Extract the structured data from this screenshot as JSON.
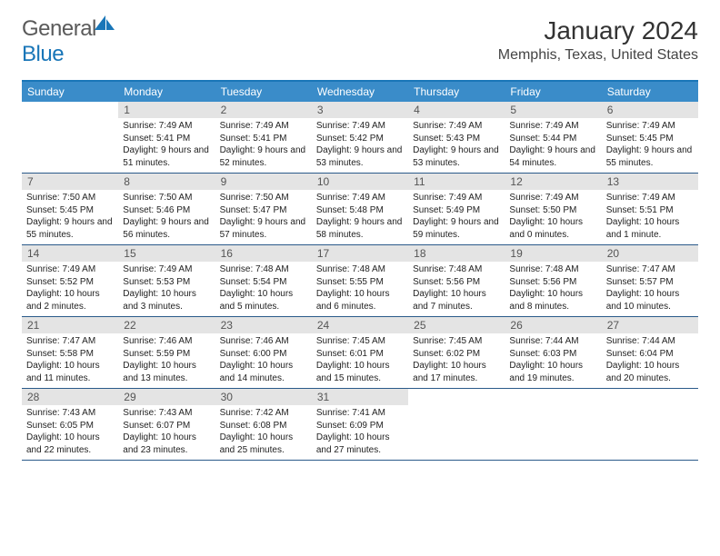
{
  "brand": {
    "name_part1": "General",
    "name_part2": "Blue",
    "icon_color": "#1976b8"
  },
  "title": "January 2024",
  "location": "Memphis, Texas, United States",
  "colors": {
    "header_bar": "#3a8cc9",
    "header_border": "#1976b8",
    "week_divider": "#2a5a8a",
    "daynum_bg": "#e4e4e4",
    "text": "#222222"
  },
  "layout": {
    "week_start": "Sunday",
    "first_day_offset": 1,
    "rows": 5,
    "cols": 7
  },
  "weekdays": [
    "Sunday",
    "Monday",
    "Tuesday",
    "Wednesday",
    "Thursday",
    "Friday",
    "Saturday"
  ],
  "days": [
    {
      "n": 1,
      "sunrise": "7:49 AM",
      "sunset": "5:41 PM",
      "daylight": "9 hours and 51 minutes."
    },
    {
      "n": 2,
      "sunrise": "7:49 AM",
      "sunset": "5:41 PM",
      "daylight": "9 hours and 52 minutes."
    },
    {
      "n": 3,
      "sunrise": "7:49 AM",
      "sunset": "5:42 PM",
      "daylight": "9 hours and 53 minutes."
    },
    {
      "n": 4,
      "sunrise": "7:49 AM",
      "sunset": "5:43 PM",
      "daylight": "9 hours and 53 minutes."
    },
    {
      "n": 5,
      "sunrise": "7:49 AM",
      "sunset": "5:44 PM",
      "daylight": "9 hours and 54 minutes."
    },
    {
      "n": 6,
      "sunrise": "7:49 AM",
      "sunset": "5:45 PM",
      "daylight": "9 hours and 55 minutes."
    },
    {
      "n": 7,
      "sunrise": "7:50 AM",
      "sunset": "5:45 PM",
      "daylight": "9 hours and 55 minutes."
    },
    {
      "n": 8,
      "sunrise": "7:50 AM",
      "sunset": "5:46 PM",
      "daylight": "9 hours and 56 minutes."
    },
    {
      "n": 9,
      "sunrise": "7:50 AM",
      "sunset": "5:47 PM",
      "daylight": "9 hours and 57 minutes."
    },
    {
      "n": 10,
      "sunrise": "7:49 AM",
      "sunset": "5:48 PM",
      "daylight": "9 hours and 58 minutes."
    },
    {
      "n": 11,
      "sunrise": "7:49 AM",
      "sunset": "5:49 PM",
      "daylight": "9 hours and 59 minutes."
    },
    {
      "n": 12,
      "sunrise": "7:49 AM",
      "sunset": "5:50 PM",
      "daylight": "10 hours and 0 minutes."
    },
    {
      "n": 13,
      "sunrise": "7:49 AM",
      "sunset": "5:51 PM",
      "daylight": "10 hours and 1 minute."
    },
    {
      "n": 14,
      "sunrise": "7:49 AM",
      "sunset": "5:52 PM",
      "daylight": "10 hours and 2 minutes."
    },
    {
      "n": 15,
      "sunrise": "7:49 AM",
      "sunset": "5:53 PM",
      "daylight": "10 hours and 3 minutes."
    },
    {
      "n": 16,
      "sunrise": "7:48 AM",
      "sunset": "5:54 PM",
      "daylight": "10 hours and 5 minutes."
    },
    {
      "n": 17,
      "sunrise": "7:48 AM",
      "sunset": "5:55 PM",
      "daylight": "10 hours and 6 minutes."
    },
    {
      "n": 18,
      "sunrise": "7:48 AM",
      "sunset": "5:56 PM",
      "daylight": "10 hours and 7 minutes."
    },
    {
      "n": 19,
      "sunrise": "7:48 AM",
      "sunset": "5:56 PM",
      "daylight": "10 hours and 8 minutes."
    },
    {
      "n": 20,
      "sunrise": "7:47 AM",
      "sunset": "5:57 PM",
      "daylight": "10 hours and 10 minutes."
    },
    {
      "n": 21,
      "sunrise": "7:47 AM",
      "sunset": "5:58 PM",
      "daylight": "10 hours and 11 minutes."
    },
    {
      "n": 22,
      "sunrise": "7:46 AM",
      "sunset": "5:59 PM",
      "daylight": "10 hours and 13 minutes."
    },
    {
      "n": 23,
      "sunrise": "7:46 AM",
      "sunset": "6:00 PM",
      "daylight": "10 hours and 14 minutes."
    },
    {
      "n": 24,
      "sunrise": "7:45 AM",
      "sunset": "6:01 PM",
      "daylight": "10 hours and 15 minutes."
    },
    {
      "n": 25,
      "sunrise": "7:45 AM",
      "sunset": "6:02 PM",
      "daylight": "10 hours and 17 minutes."
    },
    {
      "n": 26,
      "sunrise": "7:44 AM",
      "sunset": "6:03 PM",
      "daylight": "10 hours and 19 minutes."
    },
    {
      "n": 27,
      "sunrise": "7:44 AM",
      "sunset": "6:04 PM",
      "daylight": "10 hours and 20 minutes."
    },
    {
      "n": 28,
      "sunrise": "7:43 AM",
      "sunset": "6:05 PM",
      "daylight": "10 hours and 22 minutes."
    },
    {
      "n": 29,
      "sunrise": "7:43 AM",
      "sunset": "6:07 PM",
      "daylight": "10 hours and 23 minutes."
    },
    {
      "n": 30,
      "sunrise": "7:42 AM",
      "sunset": "6:08 PM",
      "daylight": "10 hours and 25 minutes."
    },
    {
      "n": 31,
      "sunrise": "7:41 AM",
      "sunset": "6:09 PM",
      "daylight": "10 hours and 27 minutes."
    }
  ],
  "labels": {
    "sunrise": "Sunrise:",
    "sunset": "Sunset:",
    "daylight": "Daylight:"
  }
}
